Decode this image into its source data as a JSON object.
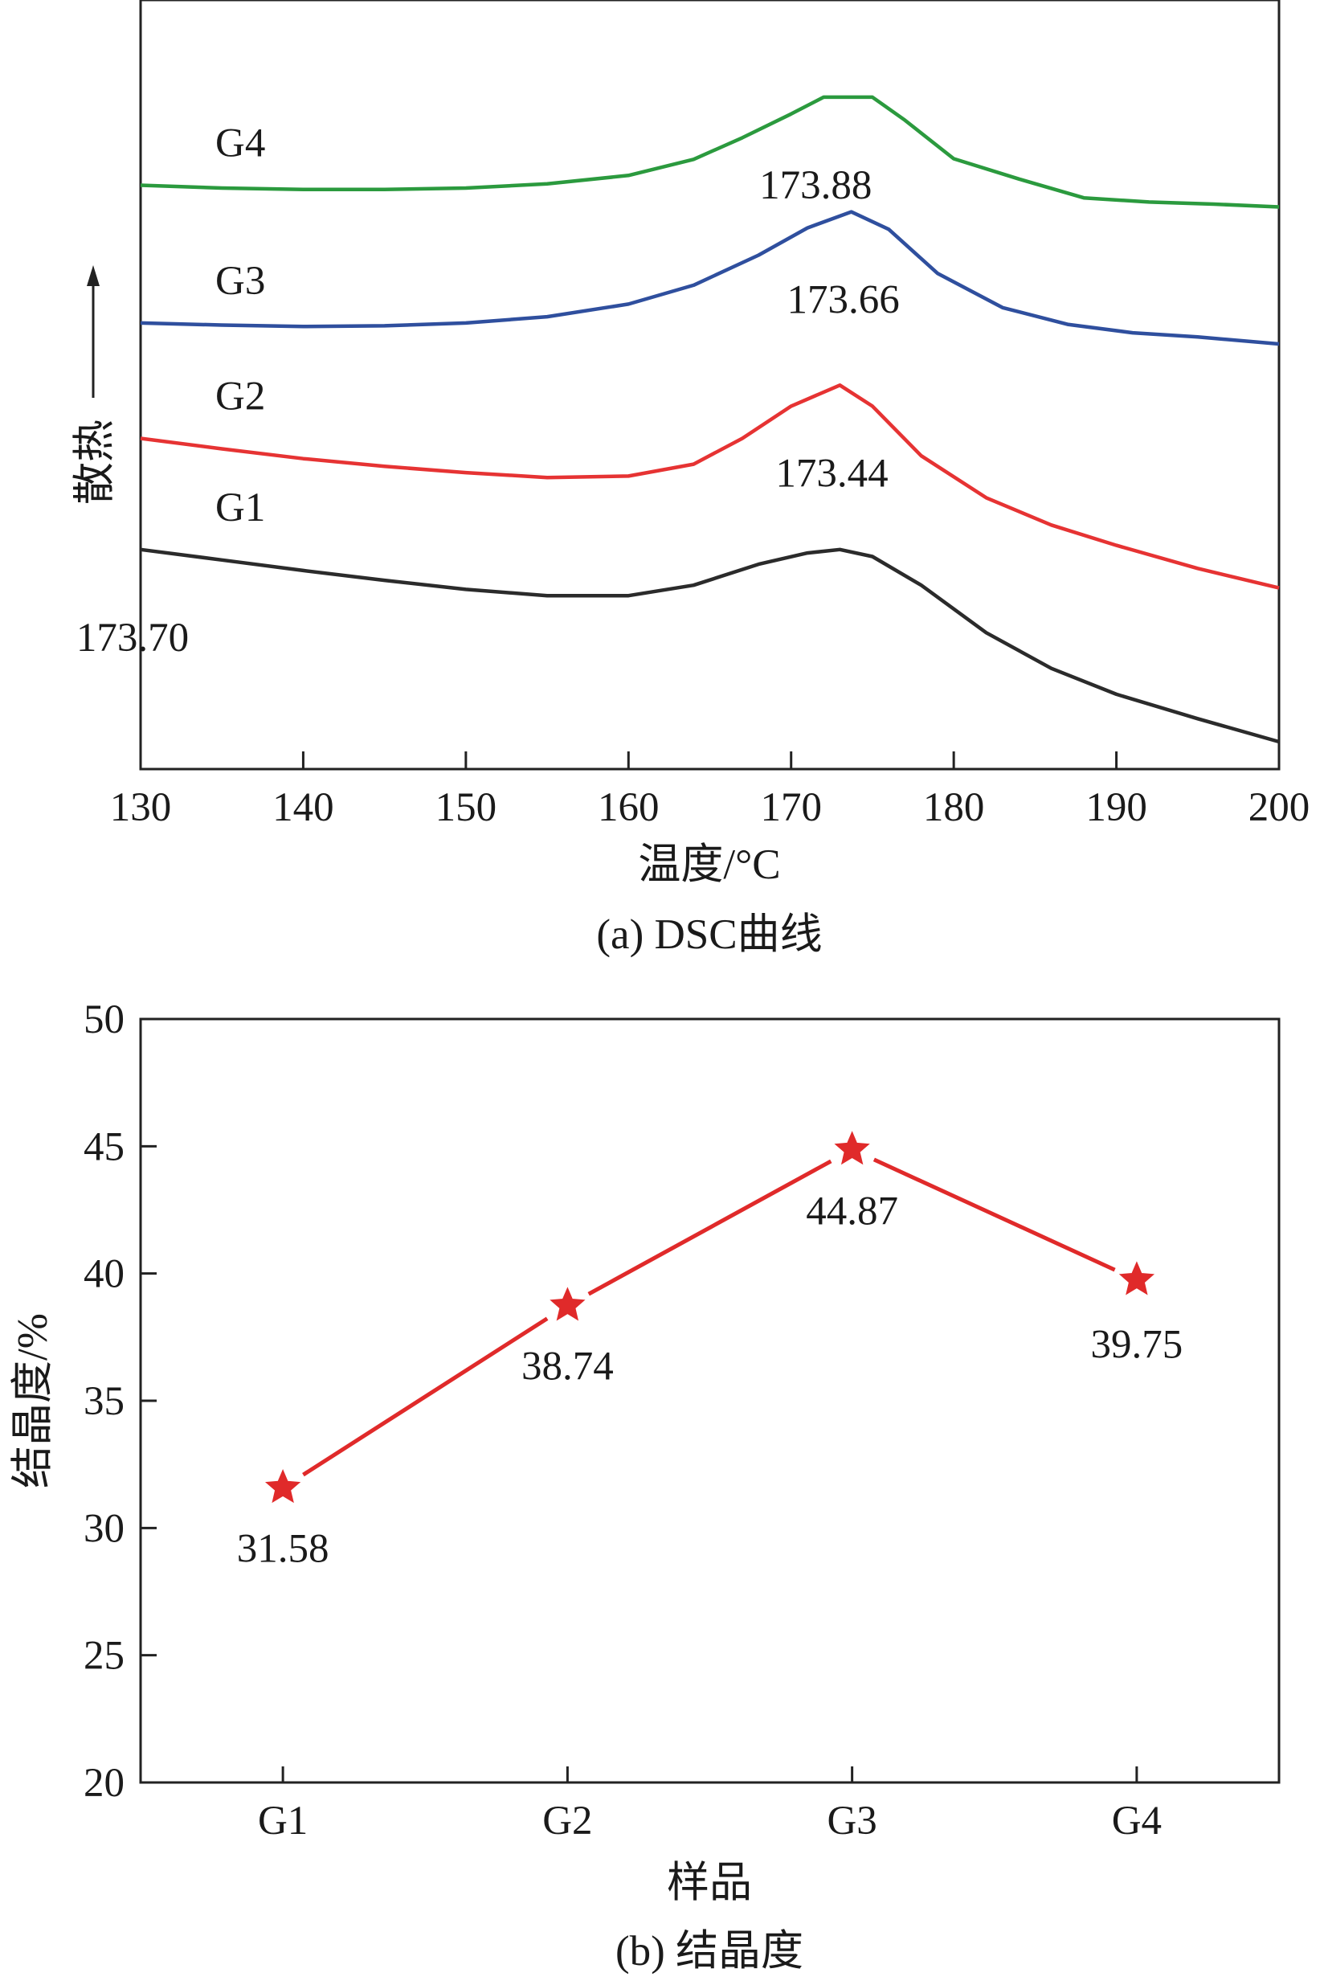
{
  "chart_data": [
    {
      "type": "line",
      "caption": "(a) DSC曲线",
      "xlabel": "温度/°C",
      "ylabel": "散热",
      "xlim": [
        130,
        200
      ],
      "xticks": [
        "130",
        "140",
        "150",
        "160",
        "170",
        "180",
        "190",
        "200"
      ],
      "ylim": [
        0,
        100
      ],
      "grid": false,
      "series": [
        {
          "name": "G1",
          "color": "#2b2b2b",
          "peak_label": "173.70",
          "x": [
            130,
            135,
            140,
            145,
            150,
            155,
            160,
            164,
            168,
            171,
            173,
            175,
            178,
            182,
            186,
            190,
            195,
            200
          ],
          "y": [
            28.3,
            26.8,
            25.3,
            23.9,
            22.6,
            21.7,
            21.7,
            23.2,
            26.2,
            27.8,
            28.3,
            27.3,
            23.2,
            16.4,
            11.3,
            7.6,
            4.1,
            0.8
          ]
        },
        {
          "name": "G2",
          "color": "#e63333",
          "peak_label": "173.44",
          "x": [
            130,
            135,
            140,
            145,
            150,
            155,
            160,
            164,
            167,
            170,
            173,
            175,
            178,
            182,
            186,
            190,
            195,
            200
          ],
          "y": [
            44.2,
            42.7,
            41.3,
            40.2,
            39.3,
            38.6,
            38.8,
            40.5,
            44.2,
            48.8,
            51.8,
            48.8,
            41.7,
            35.7,
            31.8,
            28.9,
            25.6,
            22.8
          ]
        },
        {
          "name": "G3",
          "color": "#2f4f9e",
          "peak_label": "173.66",
          "x": [
            130,
            135,
            140,
            145,
            150,
            155,
            160,
            164,
            168,
            171,
            173.7,
            176,
            179,
            183,
            187,
            191,
            195,
            200
          ],
          "y": [
            60.7,
            60.4,
            60.2,
            60.3,
            60.7,
            61.6,
            63.4,
            66.1,
            70.4,
            74.3,
            76.6,
            74.1,
            67.8,
            62.9,
            60.5,
            59.3,
            58.7,
            57.7
          ]
        },
        {
          "name": "G4",
          "color": "#2b9a3e",
          "peak_label": "173.88",
          "x": [
            130,
            135,
            140,
            145,
            150,
            155,
            160,
            164,
            167,
            170,
            172,
            175,
            177,
            180,
            184,
            188,
            192,
            196,
            200
          ],
          "y": [
            80.4,
            80.0,
            79.8,
            79.8,
            80.0,
            80.6,
            81.8,
            84.1,
            87.2,
            90.6,
            93.0,
            93.0,
            89.7,
            84.2,
            81.3,
            78.6,
            78.0,
            77.7,
            77.3
          ]
        }
      ]
    },
    {
      "type": "line",
      "caption": "(b) 结晶度",
      "xlabel": "样品",
      "ylabel": "结晶度/%",
      "categories": [
        "G1",
        "G2",
        "G3",
        "G4"
      ],
      "values": [
        31.58,
        38.74,
        44.87,
        39.75
      ],
      "data_labels": [
        "31.58",
        "38.74",
        "44.87",
        "39.75"
      ],
      "ylim": [
        20,
        50
      ],
      "yticks": [
        "20",
        "25",
        "30",
        "35",
        "40",
        "45",
        "50"
      ],
      "marker": "star",
      "color": "#e02a2a",
      "grid": false
    }
  ]
}
